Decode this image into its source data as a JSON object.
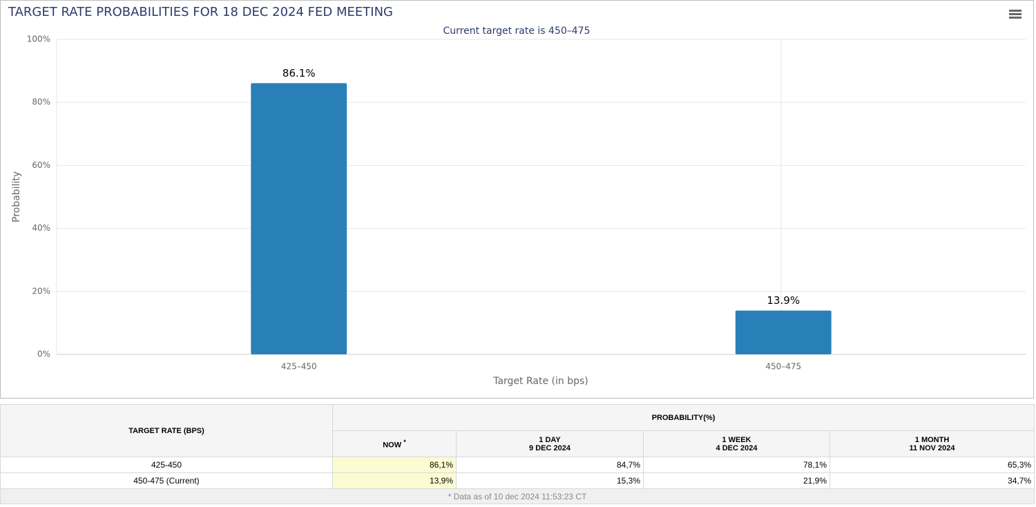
{
  "chart_data": {
    "type": "bar",
    "title": "TARGET RATE PROBABILITIES FOR 18 DEC 2024 FED MEETING",
    "subtitle": "Current target rate is 450–475",
    "x_label": "Target Rate (in bps)",
    "y_label": "Probability",
    "categories": [
      "425–450",
      "450–475"
    ],
    "values": [
      86.1,
      13.9
    ],
    "value_labels": [
      "86.1%",
      "13.9%"
    ],
    "color": "#2980b9",
    "ylim": [
      0,
      100
    ],
    "yticks": [
      {
        "value": 0,
        "label": "0%"
      },
      {
        "value": 20,
        "label": "20%"
      },
      {
        "value": 40,
        "label": "40%"
      },
      {
        "value": 60,
        "label": "60%"
      },
      {
        "value": 80,
        "label": "80%"
      },
      {
        "value": 100,
        "label": "100%"
      }
    ],
    "grid": true
  },
  "table": {
    "header": {
      "target_rate": "TARGET RATE (BPS)",
      "probability": "PROBABILITY(%)",
      "columns": [
        {
          "label": "NOW",
          "note": "*"
        },
        {
          "label": "1 DAY",
          "date": "9 DEC 2024"
        },
        {
          "label": "1 WEEK",
          "date": "4 DEC 2024"
        },
        {
          "label": "1 MONTH",
          "date": "11 NOV 2024"
        }
      ]
    },
    "rows": [
      [
        "425-450",
        "86,1%",
        "84,7%",
        "78,1%",
        "65,3%"
      ],
      [
        "450-475 (Current)",
        "13,9%",
        "15,3%",
        "21,9%",
        "34,7%"
      ]
    ],
    "footnote": "* Data as of 10 dec 2024 11:53:23 CT"
  }
}
